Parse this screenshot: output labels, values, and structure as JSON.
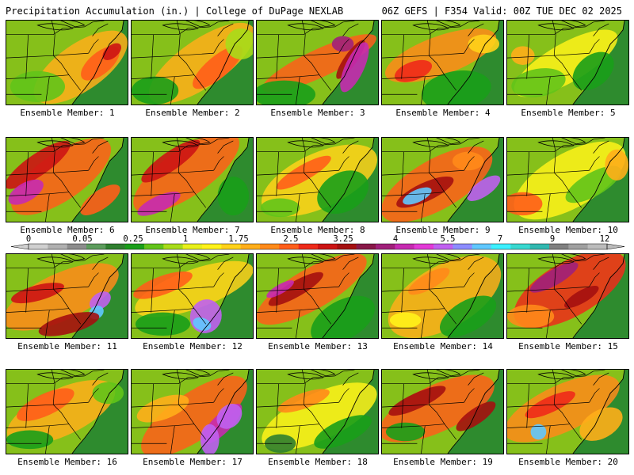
{
  "header": {
    "title_left": "Precipitation Accumulation (in.) | College of DuPage NEXLAB",
    "title_right": "06Z GEFS | F354 Valid: 00Z TUE DEC 02 2025"
  },
  "colors": {
    "ocean": "#2e8b2e",
    "land_base": "#86c01a",
    "state_lines": "#000000",
    "palette": [
      "#d0d0d0",
      "#b0b0b0",
      "#8c8c8c",
      "#5c9c5c",
      "#2f7f2f",
      "#1a9e1a",
      "#62c41a",
      "#a8dc1a",
      "#e8f01a",
      "#fff21a",
      "#ffd21a",
      "#ffae1a",
      "#ff8a1a",
      "#ff5e1a",
      "#ee2a1a",
      "#cc1414",
      "#a41010",
      "#881848",
      "#a0207a",
      "#c62ab0",
      "#e23ad6",
      "#c060f0",
      "#8c8cff",
      "#60c8ff",
      "#3cf0ff",
      "#38d8d0",
      "#30b8b0",
      "#808080",
      "#a0a0a0",
      "#bcbcbc"
    ]
  },
  "colorbar": {
    "ticks": [
      "0",
      "0.05",
      "0.25",
      "1",
      "1.75",
      "2.5",
      "3.25",
      "4",
      "5.5",
      "7",
      "9",
      "12"
    ]
  },
  "members": [
    {
      "label": "Ensemble Member: 1"
    },
    {
      "label": "Ensemble Member: 2"
    },
    {
      "label": "Ensemble Member: 3"
    },
    {
      "label": "Ensemble Member: 4"
    },
    {
      "label": "Ensemble Member: 5"
    },
    {
      "label": "Ensemble Member: 6"
    },
    {
      "label": "Ensemble Member: 7"
    },
    {
      "label": "Ensemble Member: 8"
    },
    {
      "label": "Ensemble Member: 9"
    },
    {
      "label": "Ensemble Member: 10"
    },
    {
      "label": "Ensemble Member: 11"
    },
    {
      "label": "Ensemble Member: 12"
    },
    {
      "label": "Ensemble Member: 13"
    },
    {
      "label": "Ensemble Member: 14"
    },
    {
      "label": "Ensemble Member: 15"
    },
    {
      "label": "Ensemble Member: 16"
    },
    {
      "label": "Ensemble Member: 17"
    },
    {
      "label": "Ensemble Member: 18"
    },
    {
      "label": "Ensemble Member: 19"
    },
    {
      "label": "Ensemble Member: 20"
    }
  ]
}
